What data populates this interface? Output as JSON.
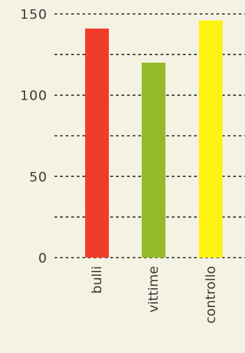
{
  "chart_data": {
    "type": "bar",
    "categories": [
      "bulli",
      "vittime",
      "controllo"
    ],
    "values": [
      141,
      120,
      146
    ],
    "colors": [
      "#f23c2a",
      "#95bb2a",
      "#fdf212"
    ],
    "ylim": [
      0,
      150
    ],
    "yticks": [
      0,
      50,
      100,
      150
    ],
    "gridlines": [
      0,
      25,
      50,
      75,
      100,
      125,
      150
    ],
    "grid": true,
    "grid_style": "dashed"
  }
}
